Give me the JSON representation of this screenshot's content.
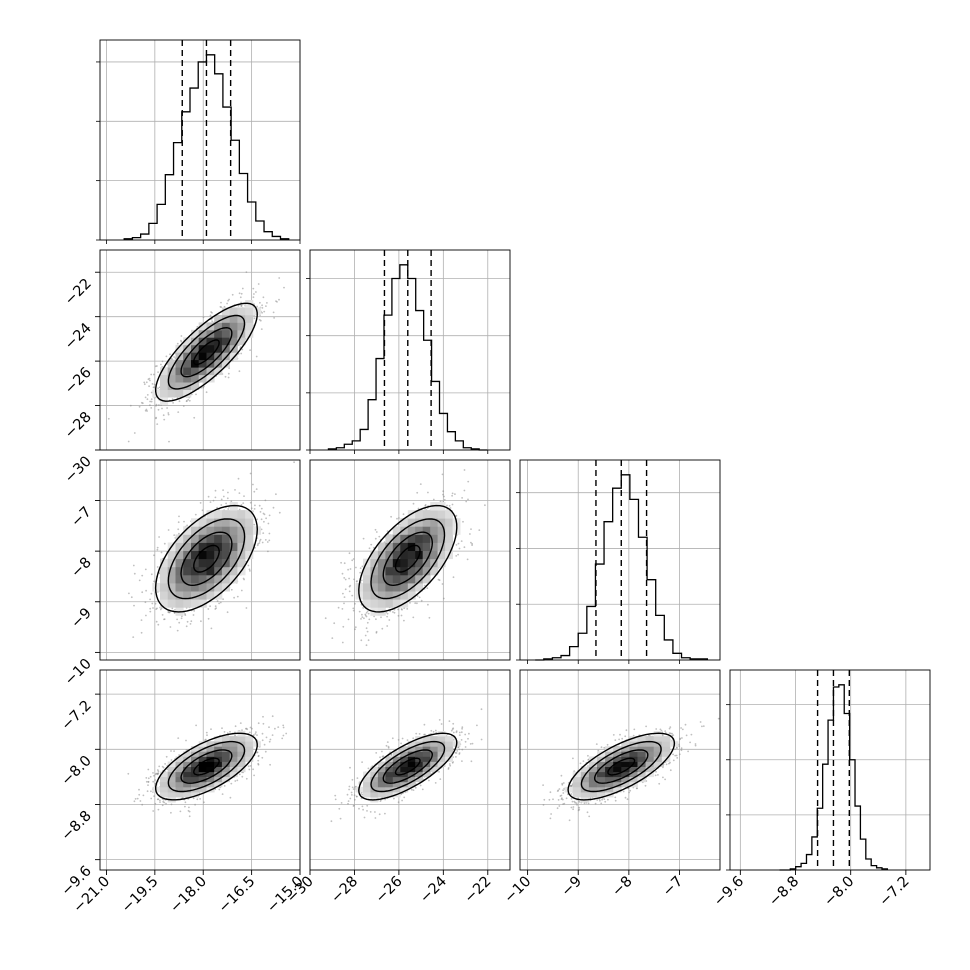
{
  "chart_data": {
    "type": "corner",
    "title": "",
    "parameters": [
      {
        "label": "",
        "mean": -17.9,
        "sd": 0.75,
        "q16": -18.65,
        "q50": -17.9,
        "q84": -17.15,
        "range": [
          -21.2,
          -15.0
        ],
        "ticks": [
          -21.0,
          -19.5,
          -18.0,
          -16.5,
          -15.0
        ],
        "tick_labels": [
          "−21.0",
          "−19.5",
          "−18.0",
          "−16.5",
          "−15.0"
        ]
      },
      {
        "label": "",
        "mean": -25.6,
        "sd": 1.05,
        "q16": -26.65,
        "q50": -25.6,
        "q84": -24.55,
        "range": [
          -30.0,
          -21.0
        ],
        "ticks": [
          -30,
          -28,
          -26,
          -24,
          -22
        ],
        "tick_labels": [
          "−30",
          "−28",
          "−26",
          "−24",
          "−22"
        ]
      },
      {
        "label": "",
        "mean": -8.15,
        "sd": 0.5,
        "q16": -8.65,
        "q50": -8.15,
        "q84": -7.65,
        "range": [
          -10.15,
          -6.2
        ],
        "ticks": [
          -10,
          -9,
          -8,
          -7
        ],
        "tick_labels": [
          "−10",
          "−9",
          "−8",
          "−7"
        ]
      },
      {
        "label": "",
        "mean": -8.25,
        "sd": 0.23,
        "q16": -8.48,
        "q50": -8.25,
        "q84": -8.02,
        "range": [
          -9.75,
          -6.85
        ],
        "ticks": [
          -9.6,
          -8.8,
          -8.0,
          -7.2
        ],
        "tick_labels": [
          "−9.6",
          "−8.8",
          "−8.0",
          "−7.2"
        ]
      }
    ],
    "histograms": [
      {
        "counts": [
          1,
          2,
          5,
          14,
          30,
          55,
          82,
          108,
          128,
          150,
          156,
          140,
          112,
          84,
          56,
          32,
          16,
          7,
          3,
          1
        ]
      },
      {
        "counts": [
          1,
          2,
          5,
          8,
          18,
          44,
          80,
          118,
          150,
          162,
          150,
          122,
          96,
          60,
          32,
          16,
          8,
          2,
          1,
          0
        ]
      },
      {
        "counts": [
          0,
          1,
          2,
          4,
          12,
          24,
          48,
          86,
          124,
          154,
          166,
          144,
          110,
          72,
          40,
          18,
          6,
          2,
          1,
          1
        ]
      },
      {
        "counts": [
          0,
          0,
          1,
          3,
          6,
          14,
          30,
          56,
          96,
          136,
          166,
          168,
          142,
          100,
          58,
          28,
          10,
          4,
          2,
          1
        ]
      }
    ],
    "correlations": {
      "1-0": 0.78,
      "2-0": 0.55,
      "2-1": 0.6,
      "3-0": 0.65,
      "3-1": 0.72,
      "3-2": 0.7
    },
    "contour_levels_sigma": [
      0.5,
      1.0,
      1.5,
      2.0
    ],
    "grid": true,
    "colors": {
      "line": "#000000",
      "grid": "#b0b0b0",
      "points": "#8c8c8c"
    }
  }
}
